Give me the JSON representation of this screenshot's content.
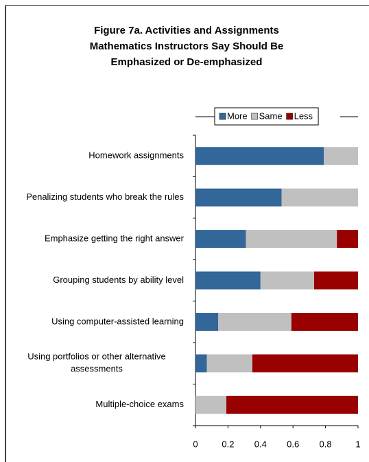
{
  "chart_data": {
    "type": "bar",
    "orientation": "horizontal",
    "stacked": true,
    "title": [
      "Figure 7a. Activities and Assignments",
      "Mathematics Instructors Say Should Be",
      "Emphasized or De-emphasized"
    ],
    "categories": [
      "Homework assignments",
      "Penalizing students who break the rules",
      "Emphasize getting the right answer",
      "Grouping students by ability level",
      "Using computer-assisted learning",
      "Using portfolios or other alternative assessments",
      "Multiple-choice exams"
    ],
    "series": [
      {
        "name": "More",
        "color": "#336699",
        "values": [
          0.79,
          0.53,
          0.31,
          0.4,
          0.14,
          0.07,
          0
        ]
      },
      {
        "name": "Same",
        "color": "#c0c0c0",
        "values": [
          0.21,
          0.47,
          0.56,
          0.33,
          0.45,
          0.28,
          0.19
        ]
      },
      {
        "name": "Less",
        "color": "#990000",
        "values": [
          0,
          0,
          0.13,
          0.27,
          0.41,
          0.65,
          0.81
        ]
      }
    ],
    "xlim": [
      0,
      1
    ],
    "xticks": [
      0,
      0.2,
      0.4,
      0.6,
      0.8,
      1
    ],
    "legend": "top"
  }
}
